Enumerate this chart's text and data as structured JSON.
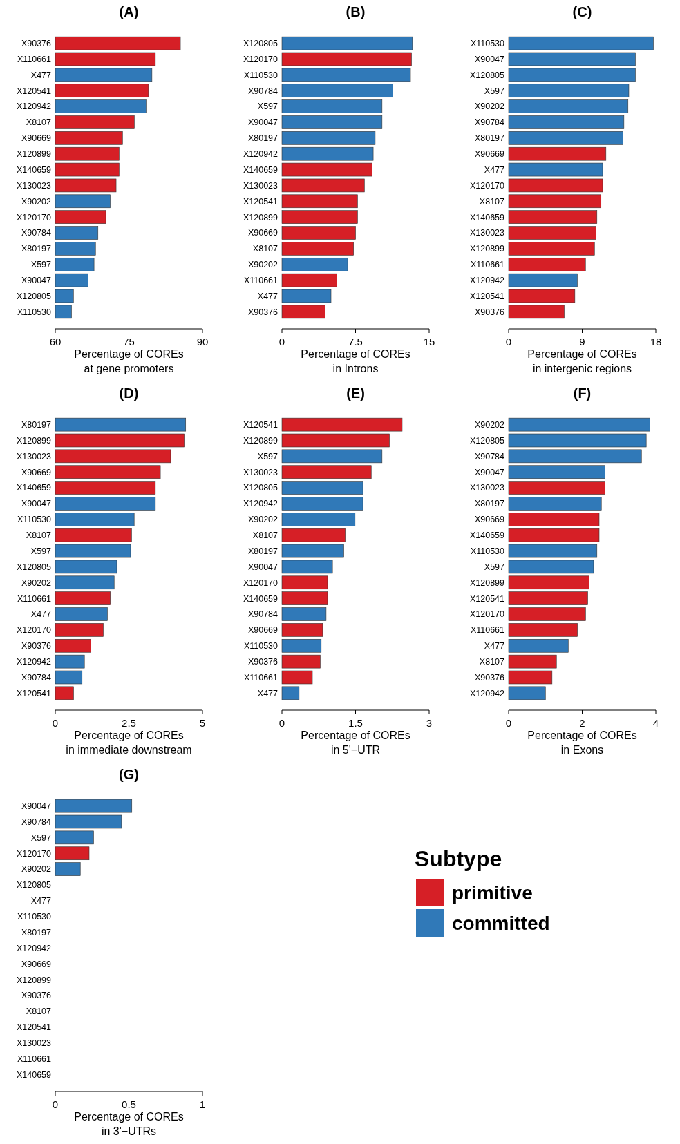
{
  "chart_data": [
    {
      "type": "bar",
      "orientation": "horizontal",
      "title": "(A)",
      "xlabel": "Percentage of COREs\nat gene promoters",
      "categories": [
        "X90376",
        "X110661",
        "X477",
        "X120541",
        "X120942",
        "X8107",
        "X90669",
        "X120899",
        "X140659",
        "X130023",
        "X90202",
        "X120170",
        "X90784",
        "X80197",
        "X597",
        "X90047",
        "X120805",
        "X110530"
      ],
      "values": [
        85.5,
        80.4,
        79.7,
        79.0,
        78.5,
        76.1,
        73.7,
        73.0,
        73.0,
        72.4,
        71.2,
        70.3,
        68.7,
        68.2,
        67.9,
        66.7,
        63.7,
        63.3
      ],
      "colors": [
        "#d61f26",
        "#d61f26",
        "#3079b8",
        "#d61f26",
        "#3079b8",
        "#d61f26",
        "#d61f26",
        "#d61f26",
        "#d61f26",
        "#d61f26",
        "#3079b8",
        "#d61f26",
        "#3079b8",
        "#3079b8",
        "#3079b8",
        "#3079b8",
        "#3079b8",
        "#3079b8"
      ],
      "xlim": [
        60,
        90
      ],
      "xticks": [
        60,
        75,
        90
      ]
    },
    {
      "type": "bar",
      "orientation": "horizontal",
      "title": "(B)",
      "xlabel": "Percentage of COREs\nin Introns",
      "categories": [
        "X120805",
        "X120170",
        "X110530",
        "X90784",
        "X597",
        "X90047",
        "X80197",
        "X120942",
        "X140659",
        "X130023",
        "X120541",
        "X120899",
        "X90669",
        "X8107",
        "X90202",
        "X110661",
        "X477",
        "X90376"
      ],
      "values": [
        13.3,
        13.2,
        13.1,
        11.3,
        10.2,
        10.2,
        9.5,
        9.3,
        9.2,
        8.4,
        7.7,
        7.7,
        7.5,
        7.3,
        6.7,
        5.6,
        5.0,
        4.4
      ],
      "colors": [
        "#3079b8",
        "#d61f26",
        "#3079b8",
        "#3079b8",
        "#3079b8",
        "#3079b8",
        "#3079b8",
        "#3079b8",
        "#d61f26",
        "#d61f26",
        "#d61f26",
        "#d61f26",
        "#d61f26",
        "#d61f26",
        "#3079b8",
        "#d61f26",
        "#3079b8",
        "#d61f26"
      ],
      "xlim": [
        0,
        15
      ],
      "xticks": [
        0,
        7.5,
        15
      ]
    },
    {
      "type": "bar",
      "orientation": "horizontal",
      "title": "(C)",
      "xlabel": "Percentage of COREs\nin intergenic regions",
      "categories": [
        "X110530",
        "X90047",
        "X120805",
        "X597",
        "X90202",
        "X90784",
        "X80197",
        "X90669",
        "X477",
        "X120170",
        "X8107",
        "X140659",
        "X130023",
        "X120899",
        "X110661",
        "X120942",
        "X120541",
        "X90376"
      ],
      "values": [
        17.7,
        15.5,
        15.5,
        14.7,
        14.6,
        14.1,
        14.0,
        11.9,
        11.5,
        11.5,
        11.3,
        10.8,
        10.7,
        10.5,
        9.4,
        8.4,
        8.1,
        6.8
      ],
      "colors": [
        "#3079b8",
        "#3079b8",
        "#3079b8",
        "#3079b8",
        "#3079b8",
        "#3079b8",
        "#3079b8",
        "#d61f26",
        "#3079b8",
        "#d61f26",
        "#d61f26",
        "#d61f26",
        "#d61f26",
        "#d61f26",
        "#d61f26",
        "#3079b8",
        "#d61f26",
        "#d61f26"
      ],
      "xlim": [
        0,
        18
      ],
      "xticks": [
        0,
        9,
        18
      ]
    },
    {
      "type": "bar",
      "orientation": "horizontal",
      "title": "(D)",
      "xlabel": "Percentage of COREs\nin immediate downstream",
      "categories": [
        "X80197",
        "X120899",
        "X130023",
        "X90669",
        "X140659",
        "X90047",
        "X110530",
        "X8107",
        "X597",
        "X120805",
        "X90202",
        "X110661",
        "X477",
        "X120170",
        "X90376",
        "X120942",
        "X90784",
        "X120541"
      ],
      "values": [
        4.43,
        4.38,
        3.92,
        3.57,
        3.4,
        3.4,
        2.68,
        2.59,
        2.56,
        2.09,
        2.0,
        1.87,
        1.77,
        1.63,
        1.21,
        0.99,
        0.91,
        0.62
      ],
      "colors": [
        "#3079b8",
        "#d61f26",
        "#d61f26",
        "#d61f26",
        "#d61f26",
        "#3079b8",
        "#3079b8",
        "#d61f26",
        "#3079b8",
        "#3079b8",
        "#3079b8",
        "#d61f26",
        "#3079b8",
        "#d61f26",
        "#d61f26",
        "#3079b8",
        "#3079b8",
        "#d61f26"
      ],
      "xlim": [
        0,
        5
      ],
      "xticks": [
        0,
        2.5,
        5
      ]
    },
    {
      "type": "bar",
      "orientation": "horizontal",
      "title": "(E)",
      "xlabel": "Percentage of COREs\nin 5'−UTR",
      "categories": [
        "X120541",
        "X120899",
        "X597",
        "X130023",
        "X120805",
        "X120942",
        "X90202",
        "X8107",
        "X80197",
        "X90047",
        "X120170",
        "X140659",
        "X90784",
        "X90669",
        "X110530",
        "X90376",
        "X110661",
        "X477"
      ],
      "values": [
        2.45,
        2.19,
        2.04,
        1.82,
        1.65,
        1.65,
        1.49,
        1.29,
        1.26,
        1.03,
        0.93,
        0.93,
        0.9,
        0.83,
        0.8,
        0.78,
        0.62,
        0.35
      ],
      "colors": [
        "#d61f26",
        "#d61f26",
        "#3079b8",
        "#d61f26",
        "#3079b8",
        "#3079b8",
        "#3079b8",
        "#d61f26",
        "#3079b8",
        "#3079b8",
        "#d61f26",
        "#d61f26",
        "#3079b8",
        "#d61f26",
        "#3079b8",
        "#d61f26",
        "#d61f26",
        "#3079b8"
      ],
      "xlim": [
        0,
        3
      ],
      "xticks": [
        0,
        1.5,
        3
      ]
    },
    {
      "type": "bar",
      "orientation": "horizontal",
      "title": "(F)",
      "xlabel": "Percentage of COREs\nin Exons",
      "categories": [
        "X90202",
        "X120805",
        "X90784",
        "X90047",
        "X130023",
        "X80197",
        "X90669",
        "X140659",
        "X110530",
        "X597",
        "X120899",
        "X120541",
        "X120170",
        "X110661",
        "X477",
        "X8107",
        "X90376",
        "X120942"
      ],
      "values": [
        3.84,
        3.74,
        3.61,
        2.62,
        2.62,
        2.52,
        2.46,
        2.46,
        2.4,
        2.31,
        2.19,
        2.15,
        2.09,
        1.87,
        1.62,
        1.3,
        1.18,
        1.0
      ],
      "colors": [
        "#3079b8",
        "#3079b8",
        "#3079b8",
        "#3079b8",
        "#d61f26",
        "#3079b8",
        "#d61f26",
        "#d61f26",
        "#3079b8",
        "#3079b8",
        "#d61f26",
        "#d61f26",
        "#d61f26",
        "#d61f26",
        "#3079b8",
        "#d61f26",
        "#d61f26",
        "#3079b8"
      ],
      "xlim": [
        0,
        4
      ],
      "xticks": [
        0,
        2,
        4
      ]
    },
    {
      "type": "bar",
      "orientation": "horizontal",
      "title": "(G)",
      "xlabel": "Percentage of COREs\nin 3'−UTRs",
      "categories": [
        "X90047",
        "X90784",
        "X597",
        "X120170",
        "X90202",
        "X120805",
        "X477",
        "X110530",
        "X80197",
        "X120942",
        "X90669",
        "X120899",
        "X90376",
        "X8107",
        "X120541",
        "X130023",
        "X110661",
        "X140659"
      ],
      "legend": "right",
      "legend_title": "Subtype",
      "series": [
        {
          "name": "primitive",
          "color": "#d61f26",
          "values": [
            null,
            null,
            null,
            0.23,
            null,
            null,
            null,
            null,
            null,
            null,
            0,
            0,
            0,
            0,
            0,
            0,
            0,
            0
          ]
        },
        {
          "name": "committed",
          "color": "#3079b8",
          "values": [
            0.52,
            0.45,
            0.26,
            null,
            0.17,
            0,
            0,
            0,
            0,
            0,
            null,
            null,
            null,
            null,
            null,
            null,
            null,
            null
          ]
        }
      ],
      "xlim": [
        0,
        1
      ],
      "xticks": [
        0,
        0.5,
        1
      ]
    }
  ]
}
